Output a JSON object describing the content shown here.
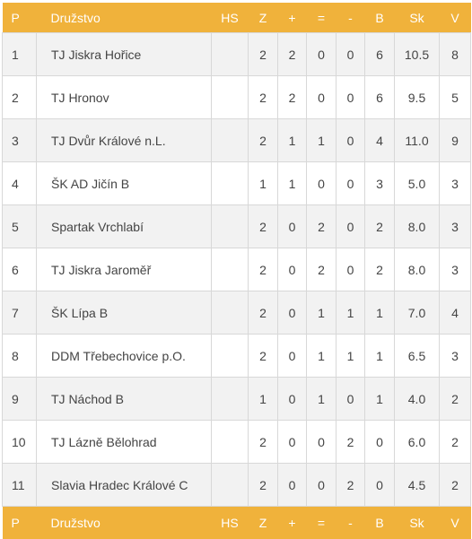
{
  "headers": {
    "p": "P",
    "team": "Družstvo",
    "hs": "HS",
    "z": "Z",
    "w": "+",
    "d": "=",
    "l": "-",
    "b": "B",
    "sk": "Sk",
    "v": "V"
  },
  "rows": [
    {
      "p": "1",
      "team": "TJ Jiskra Hořice",
      "hs": "",
      "z": "2",
      "w": "2",
      "d": "0",
      "l": "0",
      "b": "6",
      "sk": "10.5",
      "v": "8"
    },
    {
      "p": "2",
      "team": "TJ Hronov",
      "hs": "",
      "z": "2",
      "w": "2",
      "d": "0",
      "l": "0",
      "b": "6",
      "sk": "9.5",
      "v": "5"
    },
    {
      "p": "3",
      "team": "TJ Dvůr Králové n.L.",
      "hs": "",
      "z": "2",
      "w": "1",
      "d": "1",
      "l": "0",
      "b": "4",
      "sk": "11.0",
      "v": "9"
    },
    {
      "p": "4",
      "team": "ŠK AD Jičín B",
      "hs": "",
      "z": "1",
      "w": "1",
      "d": "0",
      "l": "0",
      "b": "3",
      "sk": "5.0",
      "v": "3"
    },
    {
      "p": "5",
      "team": "Spartak Vrchlabí",
      "hs": "",
      "z": "2",
      "w": "0",
      "d": "2",
      "l": "0",
      "b": "2",
      "sk": "8.0",
      "v": "3"
    },
    {
      "p": "6",
      "team": "TJ Jiskra Jaroměř",
      "hs": "",
      "z": "2",
      "w": "0",
      "d": "2",
      "l": "0",
      "b": "2",
      "sk": "8.0",
      "v": "3"
    },
    {
      "p": "7",
      "team": "ŠK Lípa B",
      "hs": "",
      "z": "2",
      "w": "0",
      "d": "1",
      "l": "1",
      "b": "1",
      "sk": "7.0",
      "v": "4"
    },
    {
      "p": "8",
      "team": "DDM Třebechovice p.O.",
      "hs": "",
      "z": "2",
      "w": "0",
      "d": "1",
      "l": "1",
      "b": "1",
      "sk": "6.5",
      "v": "3"
    },
    {
      "p": "9",
      "team": "TJ Náchod B",
      "hs": "",
      "z": "1",
      "w": "0",
      "d": "1",
      "l": "0",
      "b": "1",
      "sk": "4.0",
      "v": "2"
    },
    {
      "p": "10",
      "team": "TJ Lázně Bělohrad",
      "hs": "",
      "z": "2",
      "w": "0",
      "d": "0",
      "l": "2",
      "b": "0",
      "sk": "6.0",
      "v": "2"
    },
    {
      "p": "11",
      "team": "Slavia Hradec Králové C",
      "hs": "",
      "z": "2",
      "w": "0",
      "d": "0",
      "l": "2",
      "b": "0",
      "sk": "4.5",
      "v": "2"
    }
  ],
  "colors": {
    "header_bg": "#f0b23b",
    "header_text": "#ffffff",
    "row_alt": "#f2f2f2",
    "border": "#d8d8d8"
  }
}
